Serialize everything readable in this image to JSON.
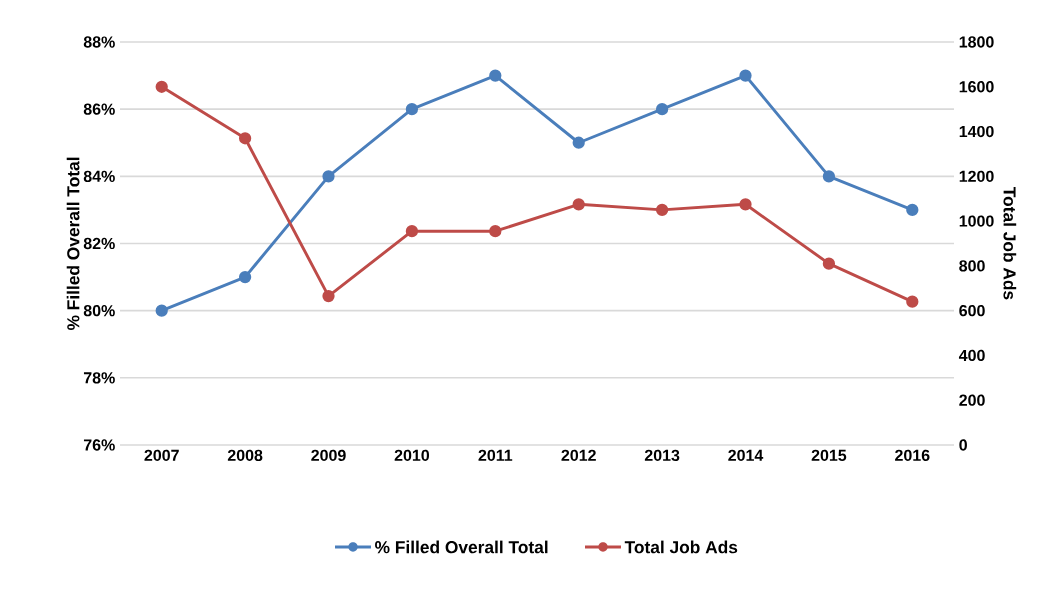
{
  "chart_data": {
    "type": "line",
    "ylabel": "% Filled Overall Total",
    "y2label": "Total Job Ads",
    "categories": [
      "2007",
      "2008",
      "2009",
      "2010",
      "2011",
      "2012",
      "2013",
      "2014",
      "2015",
      "2016"
    ],
    "series": [
      {
        "name": "% Filled Overall Total",
        "color": "#4a7ebb",
        "values": [
          80,
          81,
          84,
          86,
          87,
          85,
          86,
          87,
          84,
          83
        ]
      },
      {
        "name": "Total Job Ads",
        "color": "#be4b48",
        "axis": "y2",
        "values": [
          1600,
          1370,
          665,
          955,
          955,
          1075,
          1050,
          1075,
          810,
          640
        ]
      }
    ],
    "ylim": [
      76,
      88
    ],
    "yticks": [
      {
        "value": 76,
        "label": "76%"
      },
      {
        "value": 78,
        "label": "78%"
      },
      {
        "value": 80,
        "label": "80%"
      },
      {
        "value": 82,
        "label": "82%"
      },
      {
        "value": 84,
        "label": "84%"
      },
      {
        "value": 86,
        "label": "86%"
      },
      {
        "value": 88,
        "label": "88%"
      }
    ],
    "y2lim": [
      0,
      1800
    ],
    "y2ticks": [
      0,
      200,
      400,
      600,
      800,
      1000,
      1200,
      1400,
      1600,
      1800
    ],
    "grid": "y",
    "legend": "bottom",
    "marker": "circle",
    "line_style": "solid"
  }
}
